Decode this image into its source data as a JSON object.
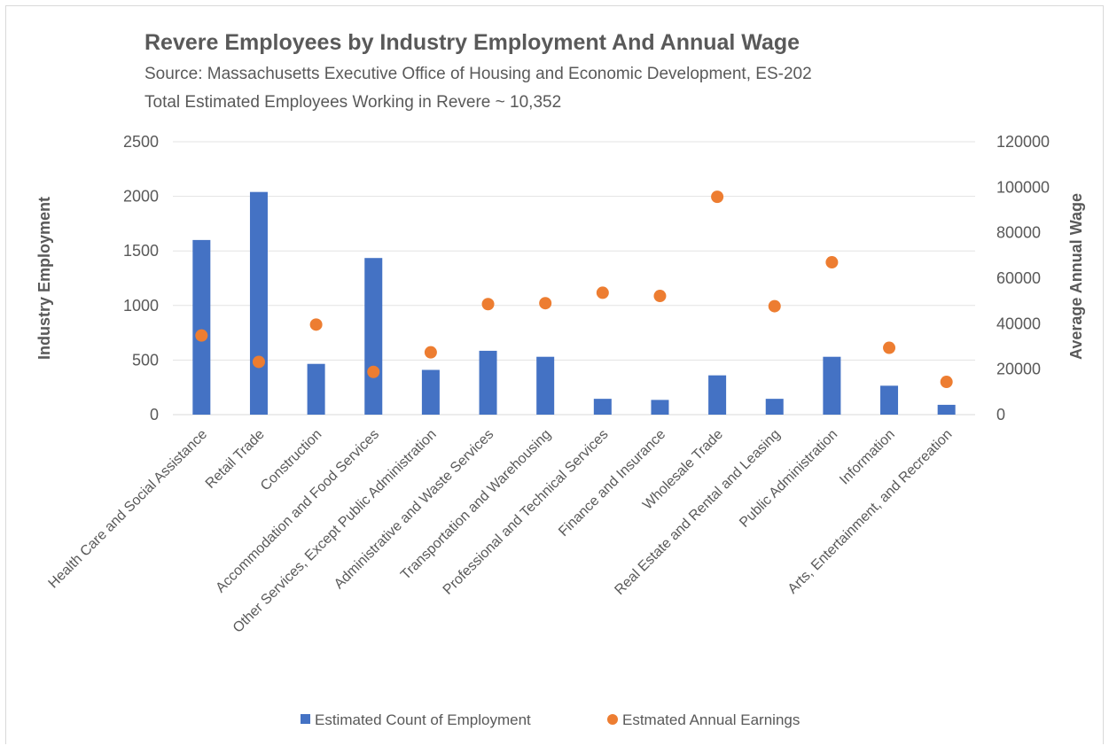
{
  "chart_data": {
    "type": "bar",
    "title": "Revere Employees by Industry Employment And Annual Wage",
    "subtitle_lines": [
      "Source: Massachusetts Executive Office of Housing and Economic Development, ES-202",
      "Total Estimated Employees Working in Revere ~ 10,352"
    ],
    "categories": [
      "Health Care and Social Assistance",
      "Retail Trade",
      "Construction",
      "Accommodation and Food Services",
      "Other Services, Except Public Administration",
      "Administrative and Waste Services",
      "Transportation and Warehousing",
      "Professional and Technical Services",
      "Finance and Insurance",
      "Wholesale Trade",
      "Real Estate and Rental and Leasing",
      "Public Administration",
      "Information",
      "Arts, Entertainment, and Recreation"
    ],
    "series": [
      {
        "name": "Estimated Count of Employment",
        "type": "bar",
        "axis": "left",
        "color": "#4472c4",
        "values": [
          1600,
          2040,
          465,
          1435,
          410,
          585,
          530,
          145,
          135,
          360,
          145,
          530,
          265,
          90
        ]
      },
      {
        "name": "Estmated Annual Earnings",
        "type": "scatter",
        "axis": "right",
        "color": "#ed7d31",
        "values": [
          34800,
          23200,
          39600,
          18800,
          27400,
          48600,
          49000,
          53600,
          52200,
          95800,
          47700,
          67000,
          29400,
          14400
        ]
      }
    ],
    "ylabel": "Industry Employment",
    "ylim": [
      0,
      2500
    ],
    "yticks": [
      "0",
      "500",
      "1000",
      "1500",
      "2000",
      "2500"
    ],
    "y2label": "Average Annual Wage",
    "y2lim": [
      0,
      120000
    ],
    "y2ticks": [
      "0",
      "20000",
      "40000",
      "60000",
      "80000",
      "100000",
      "120000"
    ],
    "grid": true,
    "legend_position": "bottom"
  }
}
